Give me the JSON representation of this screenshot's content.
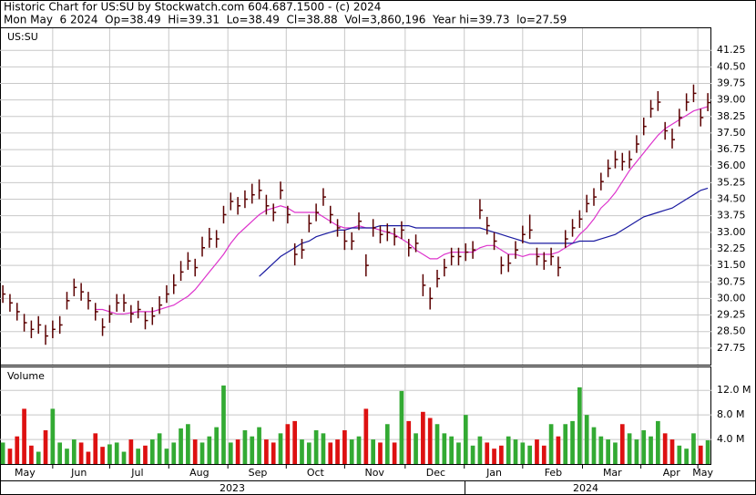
{
  "chart_data": {
    "type": "ohlc",
    "title": "Historic Chart for US:SU by Stockwatch.com 604.687.1500 - (c) 2024",
    "subtitle": "Mon May  6 2024  Op=38.49  Hi=39.31  Lo=38.49  Cl=38.88  Vol=3,860,196  Year hi=39.73  lo=27.59",
    "symbol": "US:SU",
    "volume_label": "Volume",
    "bar_color": "#5a0000",
    "up_color": "#33aa33",
    "down_color": "#dd1111",
    "high": [
      30.6,
      30.2,
      29.8,
      29.3,
      29.0,
      29.2,
      28.8,
      29.0,
      29.2,
      30.3,
      30.9,
      30.7,
      30.3,
      29.8,
      29.1,
      29.7,
      30.2,
      30.2,
      29.7,
      29.9,
      29.4,
      29.6,
      30.1,
      30.6,
      31.1,
      31.7,
      32.1,
      31.8,
      32.8,
      33.2,
      33.1,
      34.2,
      34.8,
      34.6,
      34.9,
      35.2,
      35.4,
      34.7,
      34.3,
      35.3,
      34.2,
      32.5,
      32.7,
      33.8,
      34.3,
      35.0,
      34.2,
      33.6,
      33.1,
      33.0,
      33.9,
      32.0,
      33.6,
      33.3,
      33.4,
      33.2,
      33.5,
      32.7,
      32.9,
      31.1,
      30.5,
      31.3,
      31.8,
      32.3,
      32.3,
      32.5,
      32.6,
      34.5,
      33.7,
      33.0,
      31.9,
      32.0,
      32.6,
      33.3,
      33.8,
      32.3,
      32.1,
      32.3,
      31.9,
      33.1,
      33.6,
      34.0,
      34.7,
      35.0,
      35.7,
      36.3,
      36.7,
      36.6,
      36.7,
      37.4,
      38.2,
      39.0,
      39.4,
      38.0,
      37.7,
      38.6,
      39.3,
      39.7,
      38.6,
      39.31
    ],
    "low": [
      29.8,
      29.4,
      29.0,
      28.5,
      28.2,
      28.4,
      27.9,
      28.2,
      28.4,
      29.5,
      30.1,
      29.9,
      29.5,
      29.0,
      28.3,
      28.9,
      29.4,
      29.4,
      28.9,
      29.1,
      28.6,
      28.8,
      29.3,
      29.8,
      30.2,
      30.8,
      31.3,
      31.0,
      31.9,
      32.3,
      32.3,
      33.4,
      34.0,
      33.8,
      34.1,
      34.3,
      34.5,
      33.8,
      33.5,
      34.5,
      33.4,
      31.5,
      31.8,
      33.0,
      33.5,
      34.2,
      33.4,
      32.8,
      32.2,
      32.2,
      33.1,
      31.0,
      32.8,
      32.5,
      32.6,
      32.4,
      32.7,
      31.9,
      32.1,
      30.1,
      29.5,
      30.5,
      31.0,
      31.5,
      31.5,
      31.7,
      31.8,
      33.6,
      32.9,
      32.2,
      31.1,
      31.2,
      31.8,
      32.5,
      32.7,
      31.5,
      31.3,
      31.5,
      31.0,
      32.3,
      32.8,
      33.2,
      33.9,
      34.2,
      34.9,
      35.5,
      35.9,
      35.8,
      35.9,
      36.6,
      37.4,
      38.2,
      38.5,
      37.2,
      36.8,
      37.8,
      38.5,
      38.9,
      37.8,
      38.49
    ],
    "close": [
      30.2,
      29.8,
      29.4,
      28.9,
      28.6,
      28.8,
      28.3,
      28.6,
      28.8,
      29.9,
      30.5,
      30.3,
      29.9,
      29.4,
      28.7,
      29.3,
      29.8,
      29.8,
      29.3,
      29.5,
      29.0,
      29.2,
      29.7,
      30.2,
      30.6,
      31.2,
      31.7,
      31.4,
      32.3,
      32.7,
      32.7,
      33.8,
      34.4,
      34.2,
      34.5,
      34.7,
      34.9,
      34.2,
      33.9,
      34.9,
      33.8,
      32.0,
      32.2,
      33.4,
      33.9,
      34.6,
      33.8,
      33.2,
      32.6,
      32.6,
      33.5,
      31.5,
      33.2,
      32.9,
      33.0,
      32.8,
      33.1,
      32.3,
      32.5,
      30.6,
      30.0,
      30.9,
      31.4,
      31.9,
      31.9,
      32.1,
      32.2,
      34.0,
      33.3,
      32.6,
      31.5,
      31.6,
      32.2,
      32.9,
      33.1,
      31.9,
      31.7,
      31.9,
      31.4,
      32.7,
      33.2,
      33.6,
      34.3,
      34.6,
      35.3,
      35.9,
      36.3,
      36.2,
      36.3,
      37.0,
      37.8,
      38.6,
      38.9,
      37.6,
      37.2,
      38.2,
      38.9,
      39.3,
      38.2,
      38.88
    ],
    "volume": [
      3.5,
      2.5,
      4.5,
      9.0,
      3.0,
      2.0,
      5.5,
      9.0,
      3.5,
      2.5,
      4.0,
      3.5,
      2.0,
      5.0,
      2.8,
      3.2,
      3.5,
      2.0,
      4.0,
      2.5,
      3.0,
      4.0,
      5.0,
      2.5,
      3.5,
      5.8,
      6.5,
      4.0,
      3.5,
      4.5,
      6.0,
      12.8,
      3.5,
      4.0,
      5.5,
      4.5,
      6.0,
      4.0,
      3.5,
      5.0,
      6.5,
      7.0,
      4.0,
      3.5,
      5.5,
      5.0,
      3.5,
      4.0,
      5.5,
      4.0,
      4.5,
      9.0,
      4.0,
      3.5,
      6.5,
      3.5,
      11.9,
      7.0,
      5.0,
      8.5,
      7.5,
      6.5,
      5.0,
      4.5,
      3.5,
      8.0,
      3.0,
      4.5,
      3.5,
      2.5,
      3.0,
      4.5,
      4.0,
      3.5,
      3.0,
      4.0,
      3.0,
      6.5,
      4.5,
      6.5,
      7.0,
      12.5,
      8.0,
      6.0,
      4.5,
      4.0,
      3.5,
      6.5,
      5.0,
      4.0,
      5.5,
      4.5,
      7.0,
      5.0,
      4.0,
      3.0,
      2.5,
      5.0,
      3.0,
      3.86
    ],
    "series": [
      {
        "color": "#dd33cc",
        "values": [
          null,
          null,
          null,
          null,
          null,
          null,
          null,
          null,
          null,
          null,
          null,
          null,
          null,
          29.5,
          29.5,
          29.4,
          29.3,
          29.3,
          29.35,
          29.4,
          29.4,
          29.4,
          29.5,
          29.6,
          29.7,
          29.9,
          30.1,
          30.4,
          30.8,
          31.2,
          31.6,
          32.0,
          32.5,
          32.9,
          33.2,
          33.5,
          33.8,
          34.0,
          34.1,
          34.2,
          34.1,
          33.9,
          33.9,
          33.9,
          33.9,
          33.7,
          33.5,
          33.3,
          33.2,
          33.2,
          33.3,
          33.2,
          33.2,
          33.1,
          33.0,
          32.9,
          32.7,
          32.5,
          32.2,
          32.0,
          31.8,
          31.8,
          32.0,
          32.1,
          32.1,
          32.1,
          32.1,
          32.3,
          32.4,
          32.4,
          32.2,
          32.0,
          32.0,
          31.9,
          32.0,
          32.0,
          32.0,
          32.0,
          32.1,
          32.3,
          32.5,
          32.9,
          33.2,
          33.6,
          34.1,
          34.4,
          34.8,
          35.3,
          35.8,
          36.2,
          36.6,
          37.0,
          37.4,
          37.7,
          37.9,
          38.1,
          38.3,
          38.5,
          38.6,
          38.7
        ]
      },
      {
        "color": "#1a1aa0",
        "values": [
          null,
          null,
          null,
          null,
          null,
          null,
          null,
          null,
          null,
          null,
          null,
          null,
          null,
          null,
          null,
          null,
          null,
          null,
          null,
          null,
          null,
          null,
          null,
          null,
          null,
          null,
          null,
          null,
          null,
          null,
          null,
          null,
          null,
          null,
          null,
          null,
          31.0,
          31.3,
          31.6,
          31.9,
          32.1,
          32.3,
          32.5,
          32.6,
          32.8,
          32.9,
          33.0,
          33.1,
          33.1,
          33.2,
          33.2,
          33.2,
          33.2,
          33.3,
          33.3,
          33.3,
          33.3,
          33.3,
          33.2,
          33.2,
          33.2,
          33.2,
          33.2,
          33.2,
          33.2,
          33.2,
          33.2,
          33.2,
          33.1,
          33.0,
          32.9,
          32.8,
          32.7,
          32.6,
          32.5,
          32.5,
          32.5,
          32.5,
          32.5,
          32.5,
          32.5,
          32.6,
          32.6,
          32.6,
          32.7,
          32.8,
          32.9,
          33.1,
          33.3,
          33.5,
          33.7,
          33.8,
          33.9,
          34.0,
          34.1,
          34.3,
          34.5,
          34.7,
          34.9,
          35.0
        ]
      }
    ],
    "ylim": [
      27.0,
      42.25
    ],
    "yticks": [
      27.75,
      {
        "value": 28.5,
        "label": "28.50"
      },
      29.25,
      {
        "value": 30,
        "label": "30.00"
      },
      30.75,
      {
        "value": 31.5,
        "label": "31.50"
      },
      32.25,
      {
        "value": 33,
        "label": "33.00"
      },
      33.75,
      {
        "value": 34.5,
        "label": "34.50"
      },
      35.25,
      {
        "value": 36,
        "label": "36.00"
      },
      36.75,
      {
        "value": 37.5,
        "label": "37.50"
      },
      38.25,
      {
        "value": 39,
        "label": "39.00"
      },
      39.75,
      {
        "value": 40.5,
        "label": "40.50"
      },
      41.25
    ],
    "volume_ylim": [
      0,
      15.75
    ],
    "volume_yticks": [
      {
        "value": 4,
        "label": "4.0 M"
      },
      {
        "value": 8,
        "label": "8.0 M"
      },
      {
        "value": 12,
        "label": "12.0 M"
      }
    ],
    "xlim": [
      -0.4,
      99.5
    ],
    "xgrid": [
      7,
      15,
      23.3,
      31.6,
      39.8,
      48,
      56.5,
      64.8,
      73,
      81.4,
      89.6,
      97.6
    ],
    "xticks": [
      {
        "value": 3.1,
        "label": "May"
      },
      {
        "value": 10.7,
        "label": "Jun"
      },
      {
        "value": 18.9,
        "label": "Jul"
      },
      {
        "value": 27.6,
        "label": "Aug"
      },
      {
        "value": 35.8,
        "label": "Sep"
      },
      {
        "value": 43.9,
        "label": "Oct"
      },
      {
        "value": 52.2,
        "label": "Nov"
      },
      {
        "value": 60.8,
        "label": "Dec"
      },
      {
        "value": 69,
        "label": "Jan"
      },
      {
        "value": 77.3,
        "label": "Feb"
      },
      {
        "value": 85.6,
        "label": "Mar"
      },
      {
        "value": 93.9,
        "label": "Apr"
      },
      {
        "value": 98.3,
        "label": "May"
      }
    ],
    "years": [
      "2023",
      "2024"
    ],
    "grid": true
  }
}
